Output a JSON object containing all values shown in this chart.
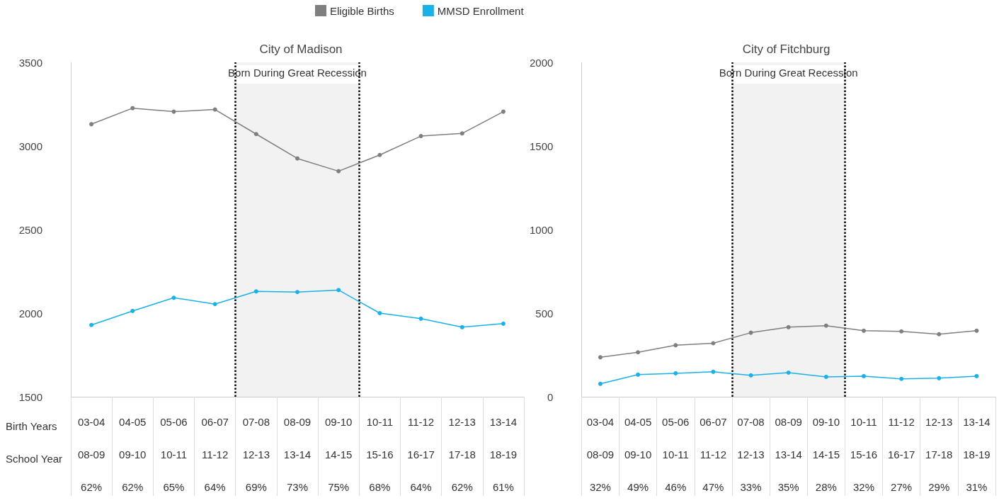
{
  "chart_data": [
    {
      "type": "line",
      "title": "City of Madison",
      "categories": [
        "03-04\n08-09\n62%",
        "04-05\n09-10\n62%",
        "05-06\n10-11\n65%",
        "06-07\n11-12\n64%",
        "07-08\n12-13\n69%",
        "08-09\n13-14\n73%",
        "09-10\n14-15\n75%",
        "10-11\n15-16\n68%",
        "11-12\n16-17\n64%",
        "12-13\n17-18\n62%",
        "13-14\n18-19\n61%"
      ],
      "series": [
        {
          "name": "Eligible Births",
          "color": "#7f7f7f",
          "values": [
            3130,
            3226,
            3205,
            3218,
            3071,
            2925,
            2849,
            2946,
            3059,
            3075,
            3205
          ]
        },
        {
          "name": "MMSD Enrollment",
          "color": "#1ab0e8",
          "values": [
            1929,
            2013,
            2092,
            2054,
            2130,
            2126,
            2138,
            2000,
            1967,
            1916,
            1937
          ]
        }
      ],
      "ylim": [
        1500,
        3500
      ],
      "yticks": [
        1500,
        2000,
        2500,
        3000,
        3500
      ],
      "grid": false,
      "legend": "top",
      "marker": "circle",
      "bands": [
        {
          "axis": "x",
          "from": "07-08\n12-13\n69%",
          "to": "09-10\n14-15\n75%",
          "label": "Born During Great Recession",
          "color": "#f2f2f2"
        }
      ],
      "annotations": [
        "Birth Years",
        "School Year"
      ]
    },
    {
      "type": "line",
      "title": "City of Fitchburg",
      "categories": [
        "03-04\n08-09\n32%",
        "04-05\n09-10\n49%",
        "05-06\n10-11\n46%",
        "06-07\n11-12\n47%",
        "07-08\n12-13\n33%",
        "08-09\n13-14\n35%",
        "09-10\n14-15\n28%",
        "10-11\n15-16\n32%",
        "11-12\n16-17\n27%",
        "12-13\n17-18\n29%",
        "13-14\n18-19\n31%"
      ],
      "series": [
        {
          "color": "#7f7f7f",
          "values": [
            236,
            266,
            308,
            320,
            383,
            416,
            425,
            395,
            391,
            374,
            395
          ]
        },
        {
          "color": "#1ab0e8",
          "values": [
            77,
            132,
            140,
            149,
            128,
            144,
            119,
            123,
            107,
            111,
            123
          ]
        }
      ],
      "ylim": [
        0,
        2000
      ],
      "yticks": [
        0,
        500,
        1000,
        1500,
        2000
      ],
      "grid": false,
      "marker": "circle",
      "bands": [
        {
          "axis": "x",
          "from": "07-08\n12-13\n33%",
          "to": "09-10\n14-15\n28%",
          "label": "Born During Great Recession",
          "color": "#f2f2f2"
        }
      ]
    }
  ]
}
